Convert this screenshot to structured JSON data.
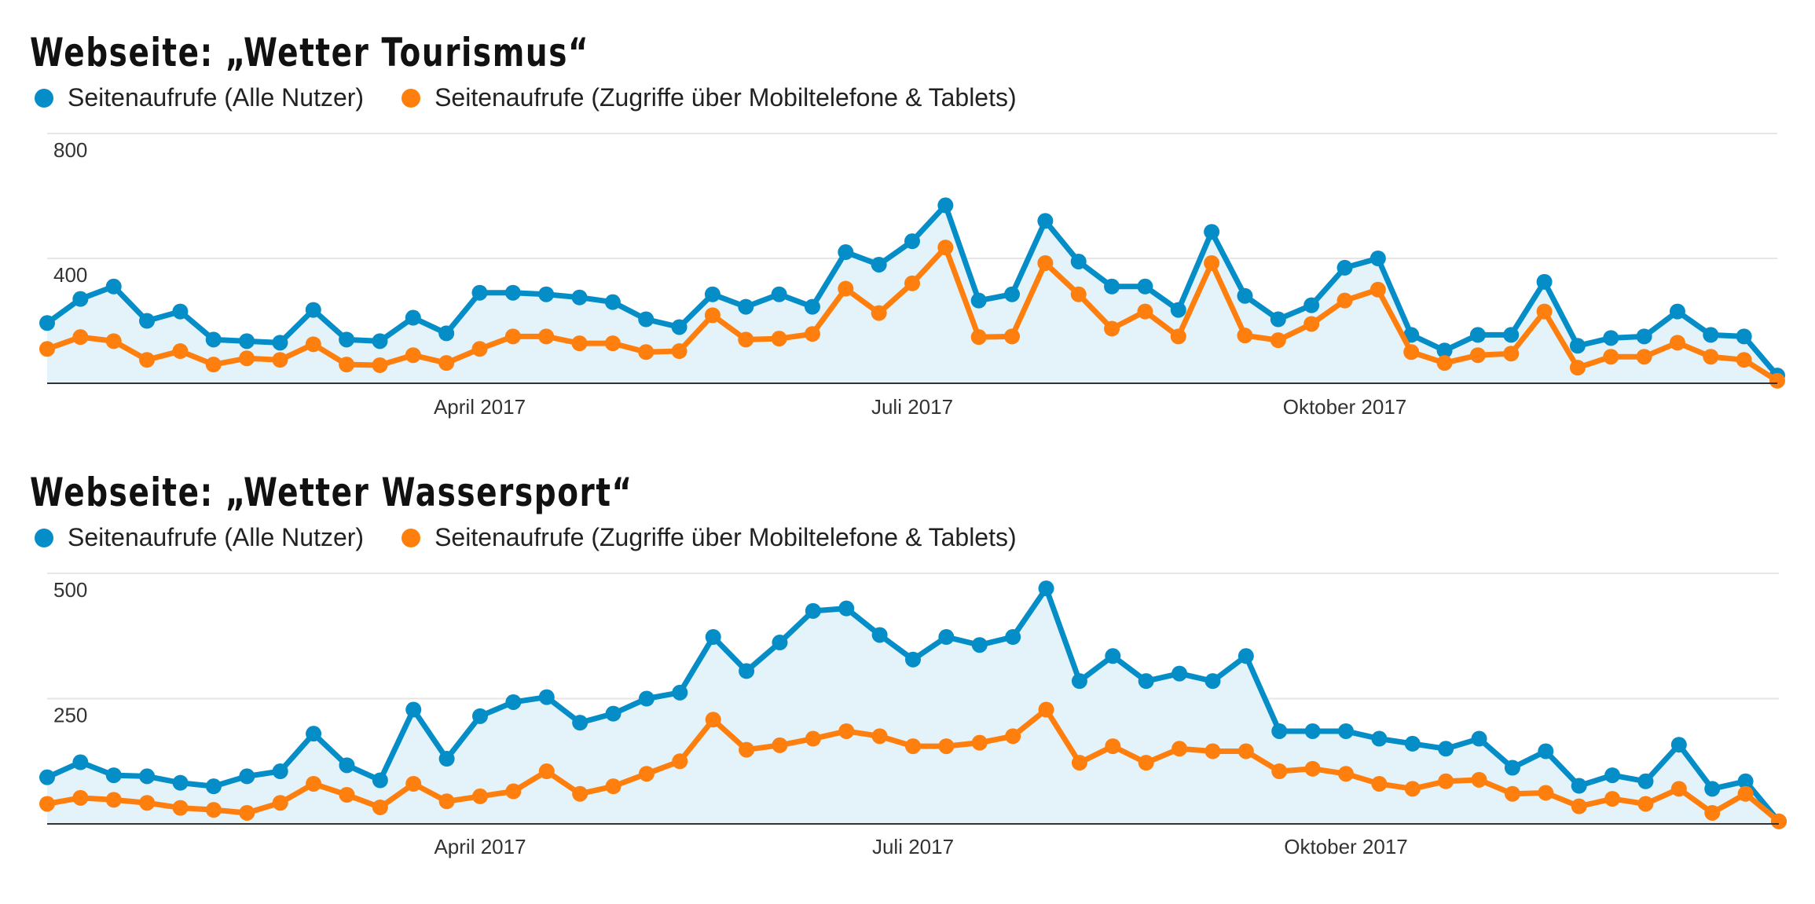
{
  "colors": {
    "series_all": "#058dc7",
    "series_mobile": "#ff7f0e",
    "area_fill": "#e3f3f9",
    "grid": "#e6e6e6",
    "axis": "#333333"
  },
  "chart_data": [
    {
      "type": "line",
      "title": "Webseite: „Wetter Tourismus“",
      "xlabel": "",
      "ylabel": "",
      "ylim": [
        0,
        800
      ],
      "y_ticks": [
        {
          "value": 800,
          "label": "800"
        },
        {
          "value": 400,
          "label": "400"
        }
      ],
      "x_ticks": [
        {
          "index": 13,
          "label": "April 2017"
        },
        {
          "index": 26,
          "label": "Juli 2017"
        },
        {
          "index": 39,
          "label": "Oktober 2017"
        }
      ],
      "grid": true,
      "legend_position": "top-left",
      "series": [
        {
          "name": "Seitenaufrufe (Alle Nutzer)",
          "color": "#058dc7",
          "filled": true,
          "values": [
            193,
            270,
            310,
            200,
            230,
            140,
            135,
            130,
            235,
            140,
            135,
            210,
            160,
            290,
            290,
            285,
            275,
            260,
            205,
            180,
            285,
            245,
            285,
            245,
            420,
            380,
            455,
            570,
            265,
            285,
            520,
            390,
            310,
            310,
            235,
            485,
            280,
            205,
            250,
            370,
            400,
            155,
            105,
            155,
            155,
            325,
            120,
            145,
            150,
            230,
            155,
            150,
            25
          ]
        },
        {
          "name": "Seitenaufrufe (Zugriffe über Mobiltelefone & Tablets)",
          "color": "#ff7f0e",
          "filled": false,
          "values": [
            110,
            148,
            135,
            75,
            103,
            60,
            80,
            75,
            125,
            60,
            58,
            90,
            65,
            110,
            150,
            150,
            128,
            128,
            100,
            103,
            218,
            140,
            143,
            158,
            303,
            225,
            320,
            435,
            148,
            150,
            385,
            285,
            175,
            230,
            150,
            385,
            153,
            138,
            190,
            265,
            300,
            100,
            65,
            90,
            95,
            230,
            50,
            85,
            85,
            130,
            85,
            75,
            8
          ]
        }
      ]
    },
    {
      "type": "line",
      "title": "Webseite: „Wetter Wassersport“",
      "xlabel": "",
      "ylabel": "",
      "ylim": [
        0,
        500
      ],
      "y_ticks": [
        {
          "value": 500,
          "label": "500"
        },
        {
          "value": 250,
          "label": "250"
        }
      ],
      "x_ticks": [
        {
          "index": 13,
          "label": "April 2017"
        },
        {
          "index": 26,
          "label": "Juli 2017"
        },
        {
          "index": 39,
          "label": "Oktober 2017"
        }
      ],
      "grid": true,
      "legend_position": "top-left",
      "series": [
        {
          "name": "Seitenaufrufe (Alle Nutzer)",
          "color": "#058dc7",
          "filled": true,
          "values": [
            93,
            123,
            97,
            95,
            82,
            75,
            95,
            105,
            180,
            117,
            87,
            228,
            130,
            215,
            243,
            253,
            202,
            220,
            250,
            262,
            373,
            305,
            362,
            425,
            430,
            377,
            328,
            373,
            357,
            373,
            470,
            285,
            335,
            285,
            300,
            285,
            335,
            185,
            185,
            185,
            170,
            160,
            150,
            170,
            112,
            145,
            76,
            97,
            85,
            158,
            70,
            85,
            5
          ]
        },
        {
          "name": "Seitenaufrufe (Zugriffe über Mobiltelefone & Tablets)",
          "color": "#ff7f0e",
          "filled": false,
          "values": [
            40,
            52,
            48,
            42,
            32,
            28,
            22,
            42,
            80,
            58,
            33,
            80,
            45,
            55,
            65,
            105,
            60,
            75,
            100,
            125,
            208,
            148,
            157,
            170,
            185,
            175,
            155,
            155,
            162,
            175,
            228,
            122,
            155,
            122,
            150,
            145,
            145,
            105,
            110,
            100,
            80,
            70,
            85,
            88,
            60,
            62,
            35,
            50,
            40,
            70,
            22,
            60,
            5
          ]
        }
      ]
    }
  ]
}
